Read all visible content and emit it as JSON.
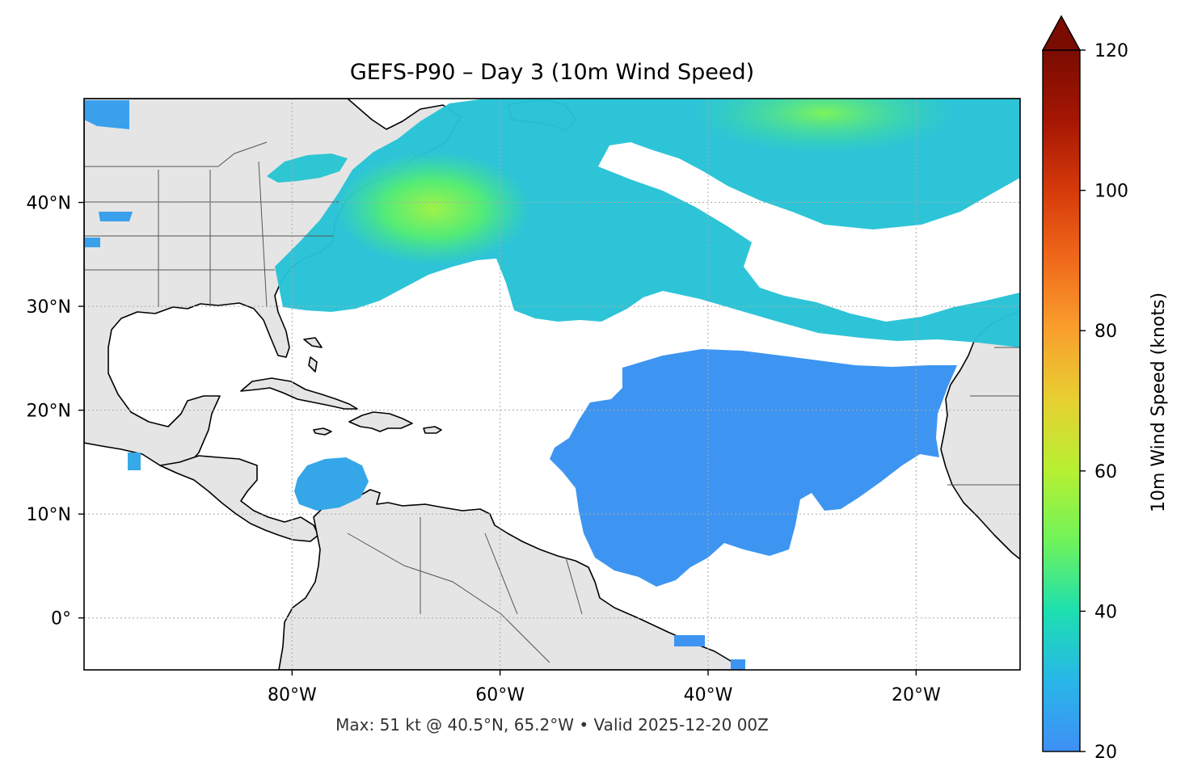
{
  "title": "GEFS-P90 – Day 3 (10m Wind Speed)",
  "footer": "Max: 51 kt @ 40.5°N, 65.2°W • Valid 2025-12-20 00Z",
  "map": {
    "lon_range": [
      -100,
      -10
    ],
    "lat_range": [
      -5,
      50
    ],
    "x_ticks": [
      {
        "lon": -80,
        "label": "80°W"
      },
      {
        "lon": -60,
        "label": "60°W"
      },
      {
        "lon": -40,
        "label": "40°W"
      },
      {
        "lon": -20,
        "label": "20°W"
      }
    ],
    "y_ticks": [
      {
        "lat": 40,
        "label": "40°N"
      },
      {
        "lat": 30,
        "label": "30°N"
      },
      {
        "lat": 20,
        "label": "20°N"
      },
      {
        "lat": 10,
        "label": "10°N"
      },
      {
        "lat": 0,
        "label": "0°"
      }
    ],
    "gridlines": "dotted",
    "land_color": "#e5e5e5",
    "max_marker": {
      "lat": 40.5,
      "lon": -65.2,
      "value_kt": 51
    }
  },
  "colorbar": {
    "label": "10m Wind Speed (knots)",
    "range": [
      20,
      120
    ],
    "extend": "max",
    "ticks": [
      {
        "value": 20,
        "label": "20"
      },
      {
        "value": 40,
        "label": "40"
      },
      {
        "value": 60,
        "label": "60"
      },
      {
        "value": 80,
        "label": "80"
      },
      {
        "value": 100,
        "label": "100"
      },
      {
        "value": 120,
        "label": "120"
      }
    ],
    "colormap": "turbo",
    "colors": [
      "#3f8ff5",
      "#28b6e8",
      "#1ddfb0",
      "#6ff35a",
      "#b6f032",
      "#e7d031",
      "#f9a02d",
      "#f06a1b",
      "#d63a0a",
      "#a51603",
      "#6e0b02"
    ]
  }
}
